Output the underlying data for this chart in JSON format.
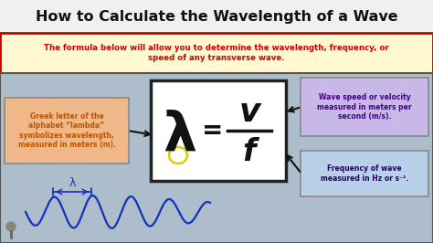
{
  "title": "How to Calculate the Wavelength of a Wave",
  "title_fontsize": 11.5,
  "title_fontweight": "bold",
  "bg_color": "#adbdcc",
  "title_bg": "#f0f0f0",
  "subtitle_text": "The formula below will allow you to determine the wavelength, frequency, or\nspeed of any transverse wave.",
  "subtitle_color": "#cc0000",
  "subtitle_bg": "#fff8d0",
  "subtitle_border": "#cc0000",
  "formula_box_bg": "#ffffff",
  "formula_box_border": "#222222",
  "lambda_text": "λ",
  "equals_text": "=",
  "v_text": "v",
  "f_text": "f",
  "left_box_bg": "#f0b888",
  "left_box_border": "#888888",
  "left_box_text": "Greek letter of the\nalphabet “lambda”\nsymbolizes wavelength,\nmeasured in meters (m).",
  "left_box_color": "#bb5500",
  "right_top_box_bg": "#c8b8e8",
  "right_top_box_border": "#888888",
  "right_top_text": "Wave speed or velocity\nmeasured in meters per\nsecond (m/s).",
  "right_top_color": "#440088",
  "right_bot_box_bg": "#b8d0e8",
  "right_bot_box_border": "#888888",
  "right_bot_text": "Frequency of wave\nmeasured in Hz or s⁻¹.",
  "right_bot_color": "#220066",
  "wave_color": "#1133bb",
  "outer_border_color": "#444444",
  "content_border_color": "#555555"
}
